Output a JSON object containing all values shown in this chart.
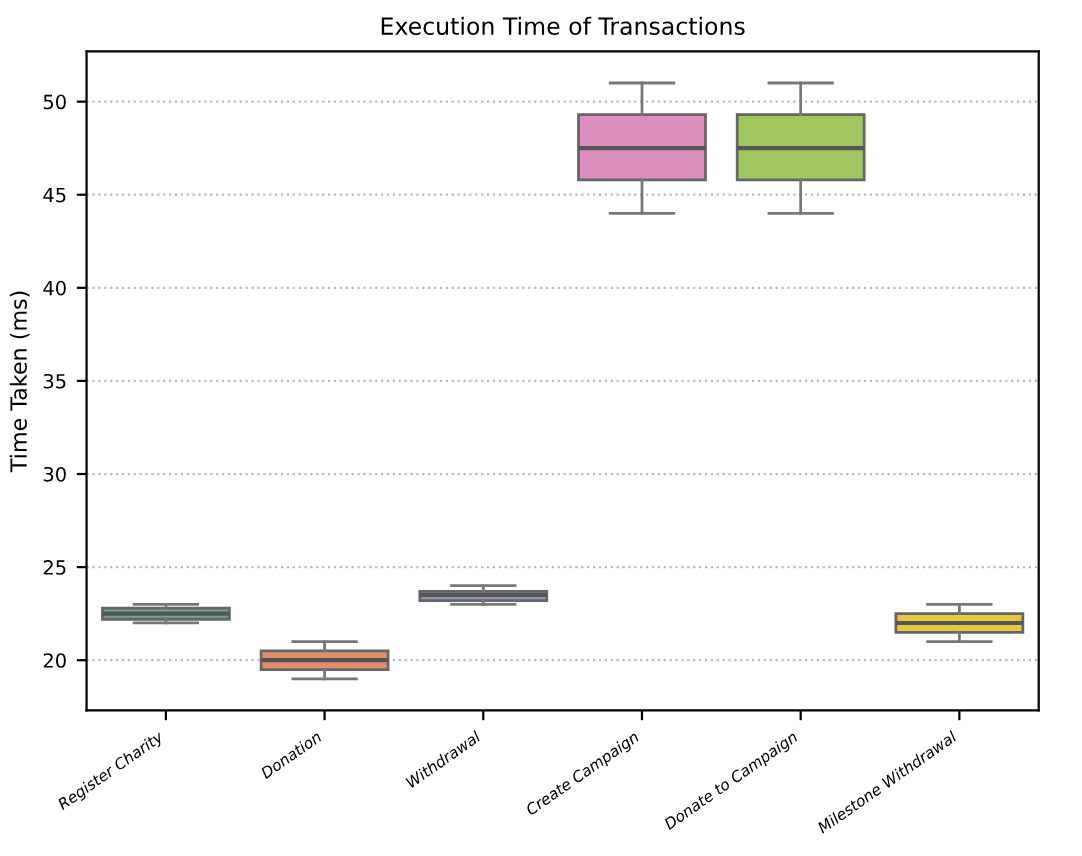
{
  "chart_data": {
    "type": "box",
    "title": "Execution Time of Transactions",
    "ylabel": "Time Taken (ms)",
    "categories": [
      "Register Charity",
      "Donation",
      "Withdrawal",
      "Create Campaign",
      "Donate to Campaign",
      "Milestone Withdrawal"
    ],
    "boxes": [
      {
        "low": 22,
        "q1": 22.2,
        "median": 22.5,
        "q3": 22.8,
        "high": 23
      },
      {
        "low": 19,
        "q1": 19.5,
        "median": 20,
        "q3": 20.5,
        "high": 21
      },
      {
        "low": 23,
        "q1": 23.2,
        "median": 23.5,
        "q3": 23.7,
        "high": 24
      },
      {
        "low": 44,
        "q1": 45.8,
        "median": 47.5,
        "q3": 49.3,
        "high": 51
      },
      {
        "low": 44,
        "q1": 45.8,
        "median": 47.5,
        "q3": 49.3,
        "high": 51
      },
      {
        "low": 21,
        "q1": 21.5,
        "median": 22,
        "q3": 22.5,
        "high": 23
      }
    ],
    "colors": [
      "#6aa98f",
      "#e48f6b",
      "#8d98b6",
      "#dc8fbf",
      "#a0c65e",
      "#e5c83c"
    ],
    "ylim": [
      17.3,
      52.7
    ],
    "yticks": [
      20,
      25,
      30,
      35,
      40,
      45,
      50
    ],
    "grid": "y"
  }
}
